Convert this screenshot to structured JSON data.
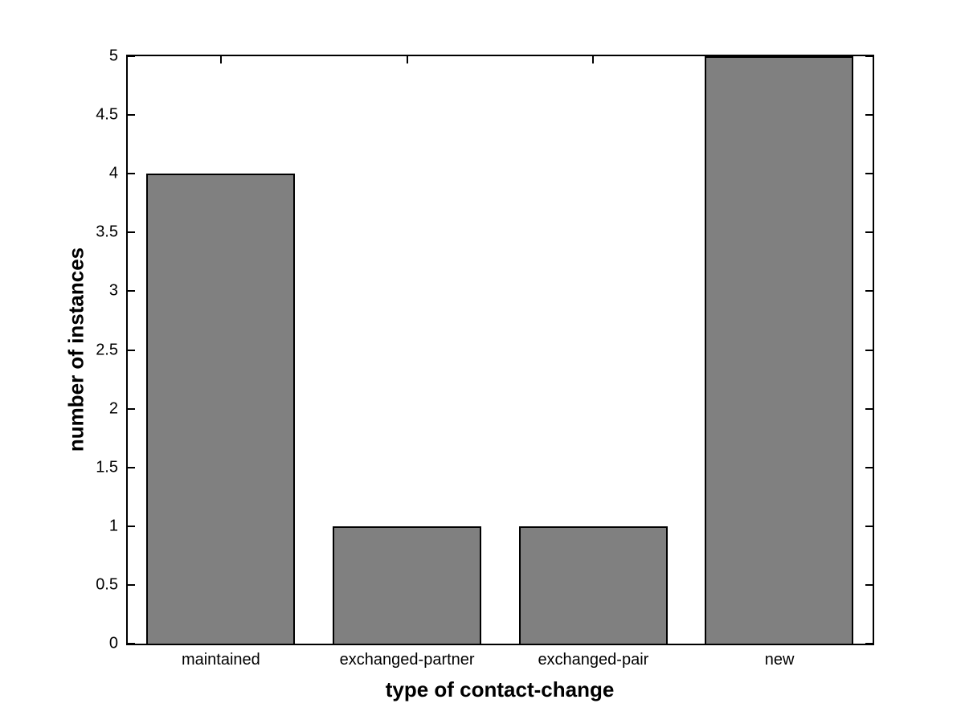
{
  "chart_data": {
    "type": "bar",
    "categories": [
      "maintained",
      "exchanged-partner",
      "exchanged-pair",
      "new"
    ],
    "values": [
      4,
      1,
      1,
      5
    ],
    "title": "",
    "xlabel": "type of contact-change",
    "ylabel": "number of instances",
    "ylim": [
      0,
      5
    ],
    "yticks": [
      0,
      0.5,
      1,
      1.5,
      2,
      2.5,
      3,
      3.5,
      4,
      4.5,
      5
    ],
    "ytick_labels": [
      "0",
      "0.5",
      "1",
      "1.5",
      "2",
      "2.5",
      "3",
      "3.5",
      "4",
      "4.5",
      "5"
    ],
    "bar_width_fraction": 0.8,
    "bar_color": "#808080",
    "bar_edge_color": "#000000",
    "axis_color": "#000000",
    "background_color": "#ffffff",
    "grid": false,
    "legend": null,
    "tick_direction": "in"
  }
}
